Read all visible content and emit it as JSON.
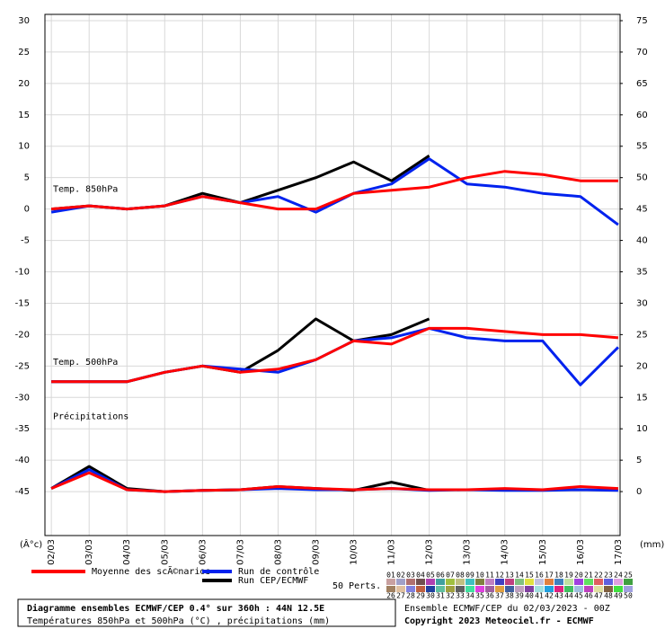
{
  "chart_data": {
    "type": "line",
    "x": [
      2,
      3,
      4,
      5,
      6,
      7,
      8,
      9,
      10,
      11,
      12,
      13,
      14,
      15,
      16,
      17
    ],
    "xlim": [
      1.83,
      17.05
    ],
    "xticks": [
      {
        "value": 2,
        "label": "02/03"
      },
      {
        "value": 3,
        "label": "03/03"
      },
      {
        "value": 4,
        "label": "04/03"
      },
      {
        "value": 5,
        "label": "05/03"
      },
      {
        "value": 6,
        "label": "06/03"
      },
      {
        "value": 7,
        "label": "07/03"
      },
      {
        "value": 8,
        "label": "08/03"
      },
      {
        "value": 9,
        "label": "09/03"
      },
      {
        "value": 10,
        "label": "10/03"
      },
      {
        "value": 11,
        "label": "11/03"
      },
      {
        "value": 12,
        "label": "12/03"
      },
      {
        "value": 13,
        "label": "13/03"
      },
      {
        "value": 14,
        "label": "14/03"
      },
      {
        "value": 15,
        "label": "15/03"
      },
      {
        "value": 16,
        "label": "16/03"
      },
      {
        "value": 17,
        "label": "17/03"
      }
    ],
    "ylim": [
      -52,
      31
    ],
    "yticks": [
      30,
      25,
      20,
      15,
      10,
      5,
      0,
      -5,
      -10,
      -15,
      -20,
      -25,
      -30,
      -35,
      -40,
      -45
    ],
    "y2lim": [
      -7,
      76
    ],
    "y2ticks": [
      75,
      70,
      65,
      60,
      55,
      50,
      45,
      40,
      35,
      30,
      25,
      20,
      15,
      10,
      5,
      0
    ],
    "ylabel": "(Â°c)",
    "y2label": "(mm)",
    "grid": true,
    "legend": [
      {
        "name": "Moyenne des scÃ©narios",
        "color": "#ff0000"
      },
      {
        "name": "Run de contrôle",
        "color": "#0022ee"
      },
      {
        "name": "Run CEP/ECMWF",
        "color": "#000000"
      }
    ],
    "panels": [
      {
        "label": "Temp. 850hPa",
        "axis": "y",
        "series": [
          {
            "values": [
              0,
              0.5,
              0,
              0.5,
              2,
              1,
              0,
              0,
              2.5,
              3,
              3.5,
              5,
              6,
              5.5,
              4.5,
              4.5
            ]
          },
          {
            "values": [
              -0.5,
              0.5,
              0,
              0.5,
              2,
              1,
              2,
              -0.5,
              2.5,
              4,
              8,
              4,
              3.5,
              2.5,
              2,
              -2.5
            ]
          },
          {
            "values": [
              0,
              0.5,
              0,
              0.5,
              2.5,
              1,
              3,
              5,
              7.5,
              4.5,
              8.5,
              null,
              null,
              null,
              null,
              null
            ]
          }
        ]
      },
      {
        "label": "Temp. 500hPa",
        "axis": "y",
        "series": [
          {
            "values": [
              -27.5,
              -27.5,
              -27.5,
              -26,
              -25,
              -26,
              -25.5,
              -24,
              -21,
              -21.5,
              -19,
              -19,
              -19.5,
              -20,
              -20,
              -20.5
            ]
          },
          {
            "values": [
              -27.5,
              -27.5,
              -27.5,
              -26,
              -25,
              -25.5,
              -26,
              -24,
              -21,
              -20.5,
              -19,
              -20.5,
              -21,
              -21,
              -28,
              -22
            ]
          },
          {
            "values": [
              -27.5,
              -27.5,
              -27.5,
              -26,
              -25,
              -26,
              -22.5,
              -17.5,
              -21,
              -20,
              -17.5,
              null,
              null,
              null,
              null,
              null
            ]
          }
        ]
      },
      {
        "label": "Précipitations",
        "axis": "y2",
        "series": [
          {
            "values": [
              0.5,
              3,
              0.3,
              0,
              0.2,
              0.3,
              0.8,
              0.5,
              0.3,
              0.5,
              0.3,
              0.3,
              0.5,
              0.3,
              0.8,
              0.5
            ]
          },
          {
            "values": [
              0.5,
              3.5,
              0.3,
              0,
              0.2,
              0.3,
              0.5,
              0.3,
              0.3,
              0.5,
              0.2,
              0.3,
              0.2,
              0.2,
              0.3,
              0.2
            ]
          },
          {
            "values": [
              0.5,
              4,
              0.5,
              0,
              0.2,
              0.3,
              0.8,
              0.5,
              0.2,
              1.5,
              0.2,
              null,
              null,
              null,
              null,
              null
            ]
          }
        ]
      }
    ],
    "perturbations": {
      "label": "50 Perts.",
      "members": [
        {
          "label": "01",
          "color": "#c8a0a0"
        },
        {
          "label": "02",
          "color": "#a0a0c8"
        },
        {
          "label": "03",
          "color": "#b07070"
        },
        {
          "label": "04",
          "color": "#705050"
        },
        {
          "label": "05",
          "color": "#b040b0"
        },
        {
          "label": "06",
          "color": "#40a0a0"
        },
        {
          "label": "07",
          "color": "#a0c040"
        },
        {
          "label": "08",
          "color": "#c0c080"
        },
        {
          "label": "09",
          "color": "#40c0c0"
        },
        {
          "label": "10",
          "color": "#808040"
        },
        {
          "label": "11",
          "color": "#c080c0"
        },
        {
          "label": "12",
          "color": "#4040c0"
        },
        {
          "label": "13",
          "color": "#c04080"
        },
        {
          "label": "14",
          "color": "#80c080"
        },
        {
          "label": "15",
          "color": "#e0e040"
        },
        {
          "label": "16",
          "color": "#c0c0e0"
        },
        {
          "label": "17",
          "color": "#e08040"
        },
        {
          "label": "18",
          "color": "#4080c0"
        },
        {
          "label": "19",
          "color": "#c0e0a0"
        },
        {
          "label": "20",
          "color": "#a040e0"
        },
        {
          "label": "21",
          "color": "#60e060"
        },
        {
          "label": "22",
          "color": "#e06060"
        },
        {
          "label": "23",
          "color": "#6060e0"
        },
        {
          "label": "24",
          "color": "#e0a0e0"
        },
        {
          "label": "25",
          "color": "#40a040"
        },
        {
          "label": "26",
          "color": "#a08060"
        },
        {
          "label": "27",
          "color": "#e0c0a0"
        },
        {
          "label": "28",
          "color": "#8080e0"
        },
        {
          "label": "29",
          "color": "#c06040"
        },
        {
          "label": "30",
          "color": "#2040a0"
        },
        {
          "label": "31",
          "color": "#60c0a0"
        },
        {
          "label": "32",
          "color": "#a0a040"
        },
        {
          "label": "33",
          "color": "#606060"
        },
        {
          "label": "34",
          "color": "#40e0a0"
        },
        {
          "label": "35",
          "color": "#e040e0"
        },
        {
          "label": "36",
          "color": "#a060a0"
        },
        {
          "label": "37",
          "color": "#e0a040"
        },
        {
          "label": "38",
          "color": "#4060a0"
        },
        {
          "label": "39",
          "color": "#c0a0c0"
        },
        {
          "label": "40",
          "color": "#8040a0"
        },
        {
          "label": "41",
          "color": "#a0e0e0"
        },
        {
          "label": "42",
          "color": "#20a0e0"
        },
        {
          "label": "43",
          "color": "#e02080"
        },
        {
          "label": "44",
          "color": "#40c060"
        },
        {
          "label": "45",
          "color": "#a0c0e0"
        },
        {
          "label": "46",
          "color": "#c040c0"
        },
        {
          "label": "47",
          "color": "#e0e0a0"
        },
        {
          "label": "48",
          "color": "#806040"
        },
        {
          "label": "49",
          "color": "#40e040"
        },
        {
          "label": "50",
          "color": "#a0a0e0"
        }
      ]
    },
    "footer": {
      "title": "Diagramme ensembles ECMWF/CEP 0.4° sur 360h : 44N 12.5E",
      "subtitle": "Températures 850hPa et 500hPa (°C) , précipitations (mm)",
      "run": "Ensemble ECMWF/CEP du 02/03/2023 - 00Z",
      "copyright": "Copyright 2023 Meteociel.fr - ECMWF"
    }
  }
}
